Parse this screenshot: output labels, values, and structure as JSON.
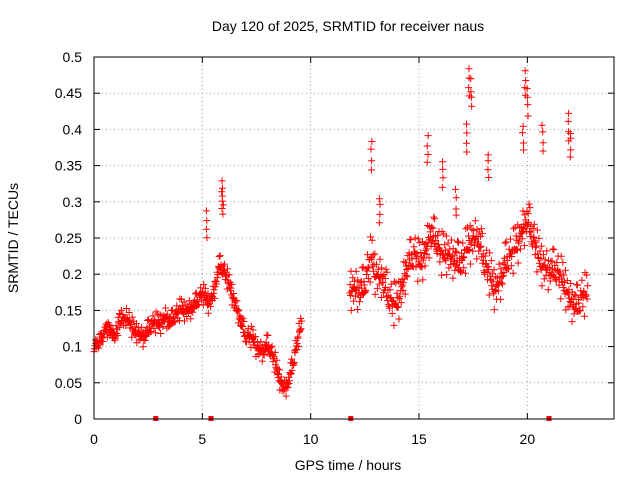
{
  "chart_data": {
    "type": "scatter",
    "title": "Day 120 of 2025, SRMTID for receiver naus",
    "xlabel": "GPS time / hours",
    "ylabel": "SRMTID / TECUs",
    "xlim": [
      0,
      24
    ],
    "ylim": [
      0,
      0.5
    ],
    "x_ticks": [
      0,
      5,
      10,
      15,
      20
    ],
    "x_tick_labels": [
      "0",
      "5",
      "10",
      "15",
      "20"
    ],
    "y_ticks": [
      0,
      0.05,
      0.1,
      0.15,
      0.2,
      0.25,
      0.3,
      0.35,
      0.4,
      0.45,
      0.5
    ],
    "y_tick_labels": [
      "0",
      "0.05",
      "0.1",
      "0.15",
      "0.2",
      "0.25",
      "0.3",
      "0.35",
      "0.4",
      "0.45",
      "0.5"
    ],
    "grid": true,
    "marker": "+",
    "color": "#ff0000",
    "series": [
      {
        "name": "SRMTID",
        "trend": [
          [
            0.0,
            0.1
          ],
          [
            0.3,
            0.11
          ],
          [
            0.5,
            0.13
          ],
          [
            0.8,
            0.12
          ],
          [
            1.0,
            0.12
          ],
          [
            1.3,
            0.14
          ],
          [
            1.5,
            0.14
          ],
          [
            1.8,
            0.12
          ],
          [
            2.0,
            0.12
          ],
          [
            2.3,
            0.11
          ],
          [
            2.5,
            0.12
          ],
          [
            2.8,
            0.13
          ],
          [
            3.0,
            0.13
          ],
          [
            3.3,
            0.14
          ],
          [
            3.5,
            0.13
          ],
          [
            3.8,
            0.14
          ],
          [
            4.0,
            0.15
          ],
          [
            4.3,
            0.15
          ],
          [
            4.5,
            0.15
          ],
          [
            4.8,
            0.16
          ],
          [
            5.0,
            0.17
          ],
          [
            5.3,
            0.16
          ],
          [
            5.5,
            0.17
          ],
          [
            5.8,
            0.21
          ],
          [
            6.0,
            0.2
          ],
          [
            6.3,
            0.18
          ],
          [
            6.5,
            0.16
          ],
          [
            6.8,
            0.13
          ],
          [
            7.0,
            0.11
          ],
          [
            7.3,
            0.11
          ],
          [
            7.5,
            0.1
          ],
          [
            7.8,
            0.09
          ],
          [
            8.0,
            0.1
          ],
          [
            8.3,
            0.08
          ],
          [
            8.5,
            0.06
          ],
          [
            8.8,
            0.04
          ],
          [
            9.0,
            0.05
          ],
          [
            9.3,
            0.09
          ],
          [
            9.5,
            0.12
          ],
          [
            9.6,
            0.13
          ],
          [
            11.8,
            0.18
          ],
          [
            12.0,
            0.18
          ],
          [
            12.3,
            0.17
          ],
          [
            12.5,
            0.18
          ],
          [
            12.8,
            0.22
          ],
          [
            13.0,
            0.2
          ],
          [
            13.3,
            0.19
          ],
          [
            13.5,
            0.17
          ],
          [
            13.8,
            0.15
          ],
          [
            14.0,
            0.16
          ],
          [
            14.3,
            0.19
          ],
          [
            14.5,
            0.21
          ],
          [
            14.8,
            0.22
          ],
          [
            15.0,
            0.21
          ],
          [
            15.3,
            0.23
          ],
          [
            15.5,
            0.25
          ],
          [
            15.8,
            0.24
          ],
          [
            16.0,
            0.22
          ],
          [
            16.3,
            0.23
          ],
          [
            16.5,
            0.22
          ],
          [
            16.8,
            0.21
          ],
          [
            17.0,
            0.21
          ],
          [
            17.3,
            0.24
          ],
          [
            17.5,
            0.25
          ],
          [
            17.8,
            0.24
          ],
          [
            18.0,
            0.21
          ],
          [
            18.3,
            0.19
          ],
          [
            18.5,
            0.18
          ],
          [
            18.8,
            0.19
          ],
          [
            19.0,
            0.21
          ],
          [
            19.3,
            0.22
          ],
          [
            19.5,
            0.24
          ],
          [
            19.8,
            0.26
          ],
          [
            20.0,
            0.27
          ],
          [
            20.3,
            0.24
          ],
          [
            20.5,
            0.22
          ],
          [
            20.8,
            0.21
          ],
          [
            21.0,
            0.2
          ],
          [
            21.3,
            0.2
          ],
          [
            21.5,
            0.19
          ],
          [
            21.8,
            0.18
          ],
          [
            22.0,
            0.16
          ],
          [
            22.3,
            0.15
          ],
          [
            22.5,
            0.16
          ],
          [
            22.8,
            0.17
          ]
        ],
        "spikes": [
          [
            5.2,
            0.29
          ],
          [
            5.9,
            0.33
          ],
          [
            5.95,
            0.32
          ],
          [
            12.8,
            0.385
          ],
          [
            13.2,
            0.31
          ],
          [
            15.4,
            0.395
          ],
          [
            16.1,
            0.36
          ],
          [
            16.7,
            0.32
          ],
          [
            17.3,
            0.485
          ],
          [
            17.4,
            0.47
          ],
          [
            17.2,
            0.41
          ],
          [
            18.2,
            0.37
          ],
          [
            19.9,
            0.485
          ],
          [
            20.0,
            0.46
          ],
          [
            19.8,
            0.41
          ],
          [
            20.7,
            0.41
          ],
          [
            21.9,
            0.425
          ],
          [
            22.0,
            0.4
          ]
        ]
      }
    ],
    "gap_markers_x": [
      2.85,
      5.4,
      11.85,
      21.0
    ]
  }
}
